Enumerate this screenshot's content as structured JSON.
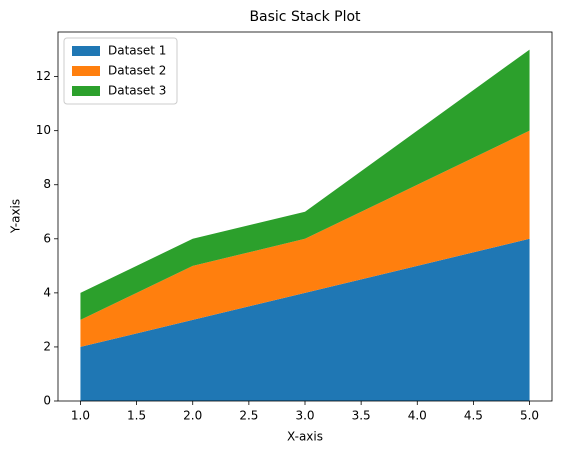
{
  "chart_data": {
    "type": "stackplot",
    "title": "Basic Stack Plot",
    "x_label": "X-axis",
    "y_label": "Y-axis",
    "x": [
      1,
      2,
      3,
      4,
      5
    ],
    "series": [
      {
        "name": "Dataset 1",
        "color": "#1f77b4",
        "values": [
          2,
          3,
          4,
          5,
          6
        ]
      },
      {
        "name": "Dataset 2",
        "color": "#ff7f0e",
        "values": [
          1,
          2,
          2,
          3,
          4
        ]
      },
      {
        "name": "Dataset 3",
        "color": "#2ca02c",
        "values": [
          1,
          1,
          1,
          2,
          3
        ]
      }
    ],
    "xlim": [
      0.8,
      5.2
    ],
    "ylim": [
      0,
      13.65
    ],
    "xticks": [
      {
        "value": 1,
        "label": "1.0"
      },
      {
        "value": 1.5,
        "label": "1.5"
      },
      {
        "value": 2,
        "label": "2.0"
      },
      {
        "value": 2.5,
        "label": "2.5"
      },
      {
        "value": 3,
        "label": "3.0"
      },
      {
        "value": 3.5,
        "label": "3.5"
      },
      {
        "value": 4,
        "label": "4.0"
      },
      {
        "value": 4.5,
        "label": "4.5"
      },
      {
        "value": 5,
        "label": "5.0"
      }
    ],
    "yticks": [
      0,
      2,
      4,
      6,
      8,
      10,
      12
    ],
    "grid": false,
    "legend": "upper-left"
  }
}
